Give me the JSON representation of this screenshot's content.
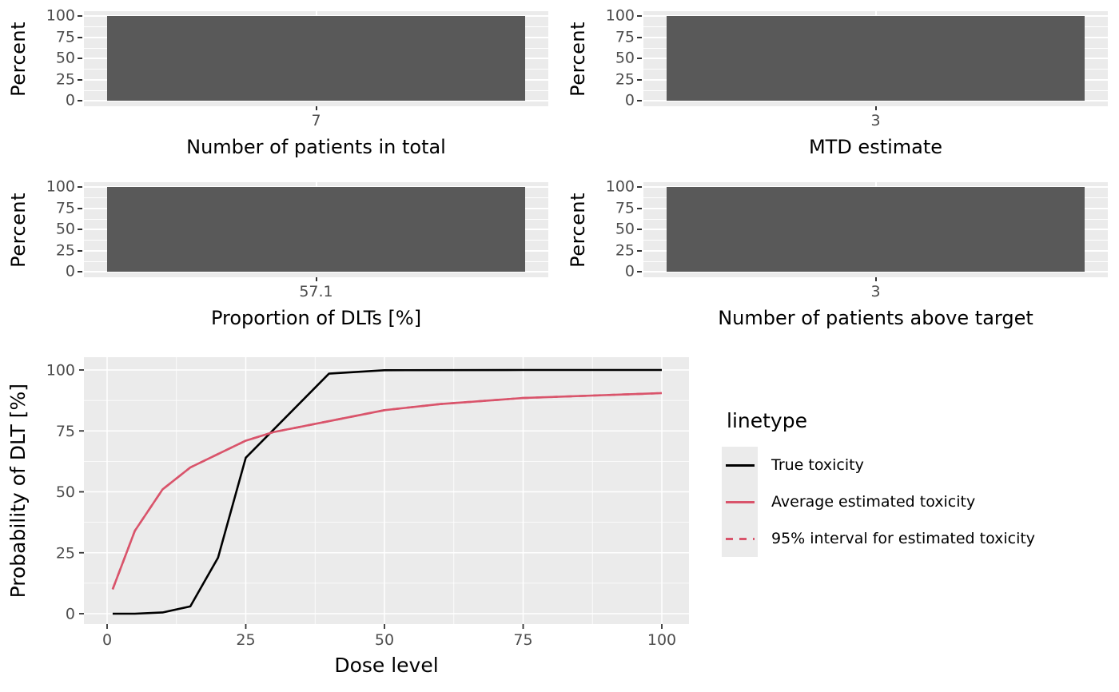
{
  "colors": {
    "bar_fill": "#595959",
    "panel_background": "#EBEBEB",
    "gridline": "#FFFFFF",
    "tick_label": "#4D4D4D",
    "axis_title": "#000000",
    "true_toxicity_line": "#000000",
    "estimated_toxicity_line": "#D9546B"
  },
  "bar_charts": {
    "ylabel": "Percent",
    "ytick_labels": [
      "100",
      "75",
      "50",
      "25",
      "0"
    ],
    "items": [
      {
        "tick_label": "7",
        "xlabel": "Number of patients in total",
        "value_percent": 100
      },
      {
        "tick_label": "3",
        "xlabel": "MTD estimate",
        "value_percent": 100
      },
      {
        "tick_label": "57.1",
        "xlabel": "Proportion of DLTs [%]",
        "value_percent": 100
      },
      {
        "tick_label": "3",
        "xlabel": "Number of patients above target",
        "value_percent": 100
      }
    ]
  },
  "line_chart": {
    "xlabel": "Dose level",
    "ylabel": "Probability of DLT [%]",
    "xtick_labels": [
      "0",
      "25",
      "50",
      "75",
      "100"
    ],
    "ytick_labels": [
      "100",
      "75",
      "50",
      "25",
      "0"
    ],
    "legend": {
      "title": "linetype",
      "entries": [
        {
          "label": "True toxicity",
          "linetype": "solid",
          "color": "#000000"
        },
        {
          "label": "Average estimated toxicity",
          "linetype": "solid",
          "color": "#D9546B"
        },
        {
          "label": "95% interval for estimated toxicity",
          "linetype": "dashed",
          "color": "#D9546B"
        }
      ]
    }
  },
  "chart_data": [
    {
      "type": "bar",
      "categories": [
        "7"
      ],
      "values": [
        100
      ],
      "xlabel": "Number of patients in total",
      "ylabel": "Percent",
      "ylim": [
        0,
        100
      ]
    },
    {
      "type": "bar",
      "categories": [
        "3"
      ],
      "values": [
        100
      ],
      "xlabel": "MTD estimate",
      "ylabel": "Percent",
      "ylim": [
        0,
        100
      ]
    },
    {
      "type": "bar",
      "categories": [
        "57.1"
      ],
      "values": [
        100
      ],
      "xlabel": "Proportion of DLTs [%]",
      "ylabel": "Percent",
      "ylim": [
        0,
        100
      ]
    },
    {
      "type": "bar",
      "categories": [
        "3"
      ],
      "values": [
        100
      ],
      "xlabel": "Number of patients above target",
      "ylabel": "Percent",
      "ylim": [
        0,
        100
      ]
    },
    {
      "type": "line",
      "title": "",
      "xlabel": "Dose level",
      "ylabel": "Probability of DLT [%]",
      "xlim": [
        0,
        100
      ],
      "ylim": [
        0,
        100
      ],
      "x_major_ticks": [
        0,
        25,
        50,
        75,
        100
      ],
      "y_major_ticks": [
        0,
        25,
        50,
        75,
        100
      ],
      "grid": true,
      "legend_title": "linetype",
      "legend_position": "right",
      "series": [
        {
          "name": "True toxicity",
          "color": "#000000",
          "linetype": "solid",
          "x": [
            1,
            5,
            10,
            15,
            20,
            25,
            40,
            50,
            75,
            100
          ],
          "y": [
            0,
            0,
            0.5,
            3,
            23,
            64,
            98.5,
            99.9,
            100,
            100
          ]
        },
        {
          "name": "Average estimated toxicity",
          "color": "#D9546B",
          "linetype": "solid",
          "x": [
            1,
            5,
            10,
            15,
            20,
            25,
            30,
            40,
            50,
            60,
            75,
            100
          ],
          "y": [
            10,
            34,
            51,
            60,
            65.5,
            71,
            74.5,
            79,
            83.5,
            86,
            88.5,
            90.5
          ]
        },
        {
          "name": "95% interval for estimated toxicity",
          "color": "#D9546B",
          "linetype": "dashed",
          "x": [
            1,
            5,
            10,
            15,
            20,
            25,
            30,
            40,
            50,
            60,
            75,
            100
          ],
          "y": [
            10,
            34,
            51,
            60,
            65.5,
            71,
            74.5,
            79,
            83.5,
            86,
            88.5,
            90.5
          ]
        }
      ]
    }
  ]
}
